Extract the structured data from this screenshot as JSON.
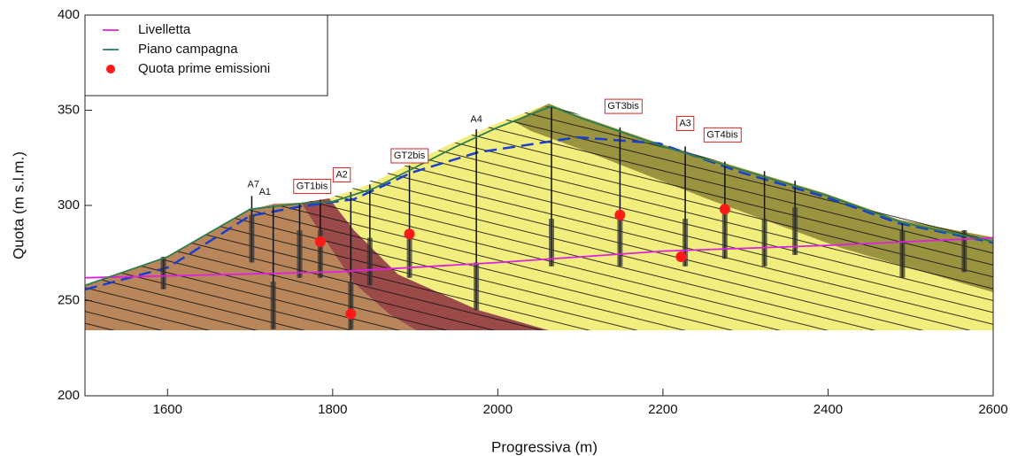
{
  "chart_data": {
    "type": "line",
    "xlabel": "Progressiva (m)",
    "ylabel": "Quota (m s.l.m.)",
    "xlim": [
      1500,
      2600
    ],
    "ylim": [
      200,
      400
    ],
    "xticks": [
      1600,
      1800,
      2000,
      2200,
      2400,
      2600
    ],
    "yticks": [
      200,
      250,
      300,
      350,
      400
    ],
    "legend": "upper left",
    "series": [
      {
        "name": "Livelletta",
        "color": "#e020e0",
        "style": "line",
        "x": [
          1500,
          1700,
          1800,
          2000,
          2200,
          2400,
          2600
        ],
        "values": [
          262,
          264,
          265,
          270,
          276,
          279,
          283
        ]
      },
      {
        "name": "Piano campagna",
        "color": "#2e7d4f",
        "style": "line",
        "x": [
          1500,
          1600,
          1700,
          1760,
          1800,
          1850,
          1900,
          1950,
          2000,
          2065,
          2100,
          2200,
          2300,
          2400,
          2490,
          2600
        ],
        "values": [
          258,
          273,
          298,
          301,
          302,
          309,
          320,
          331,
          341,
          352,
          346,
          331,
          318,
          305,
          291,
          281
        ]
      },
      {
        "name": "Quota prime emissioni",
        "color": "#ff1a1a",
        "style": "marker",
        "x": [
          1785,
          1822,
          1893,
          2148,
          2222,
          2275
        ],
        "values": [
          281,
          243,
          285,
          295,
          273,
          298
        ]
      }
    ],
    "boreholes": {
      "x": [
        1595,
        1702,
        1728,
        1760,
        1785,
        1822,
        1845,
        1893,
        1974,
        2065,
        2148,
        2227,
        2275,
        2323,
        2360,
        2490,
        2565
      ],
      "top": [
        273,
        305,
        300,
        301,
        303,
        307,
        311,
        321,
        340,
        352,
        341,
        331,
        323,
        318,
        313,
        291,
        287
      ],
      "bottom": [
        256,
        270,
        235,
        262,
        262,
        235,
        258,
        262,
        245,
        268,
        268,
        268,
        272,
        268,
        274,
        262,
        265
      ]
    },
    "annotations": [
      {
        "text": "A7",
        "x": 1704,
        "y": 311,
        "boxed": false
      },
      {
        "text": "A1",
        "x": 1718,
        "y": 307,
        "boxed": false
      },
      {
        "text": "GT1bis",
        "x": 1775,
        "y": 310,
        "boxed": true
      },
      {
        "text": "A2",
        "x": 1811,
        "y": 316,
        "boxed": true
      },
      {
        "text": "GT2bis",
        "x": 1893,
        "y": 326,
        "boxed": true
      },
      {
        "text": "A4",
        "x": 1974,
        "y": 345,
        "boxed": false
      },
      {
        "text": "GT3bis",
        "x": 2152,
        "y": 352,
        "boxed": true
      },
      {
        "text": "A3",
        "x": 2227,
        "y": 343,
        "boxed": true
      },
      {
        "text": "GT4bis",
        "x": 2272,
        "y": 337,
        "boxed": true
      }
    ]
  }
}
